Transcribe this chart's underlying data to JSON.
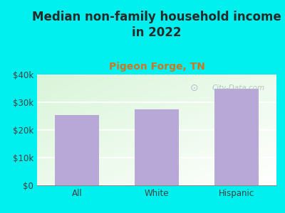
{
  "title": "Median non-family household income\nin 2022",
  "subtitle": "Pigeon Forge, TN",
  "categories": [
    "All",
    "White",
    "Hispanic"
  ],
  "values": [
    25500,
    27500,
    35000
  ],
  "bar_color": "#b8a8d8",
  "background_color": "#00f0f0",
  "plot_bg_top_left": "#d8f0d8",
  "plot_bg_bottom_right": "#f8fff8",
  "title_color": "#2a2a2a",
  "subtitle_color": "#cc7722",
  "axis_label_color": "#404040",
  "ylim": [
    0,
    40000
  ],
  "yticks": [
    0,
    10000,
    20000,
    30000,
    40000
  ],
  "ytick_labels": [
    "$0",
    "$10k",
    "$20k",
    "$30k",
    "$40k"
  ],
  "watermark": "City-Data.com",
  "title_fontsize": 12,
  "subtitle_fontsize": 10,
  "tick_fontsize": 8.5
}
